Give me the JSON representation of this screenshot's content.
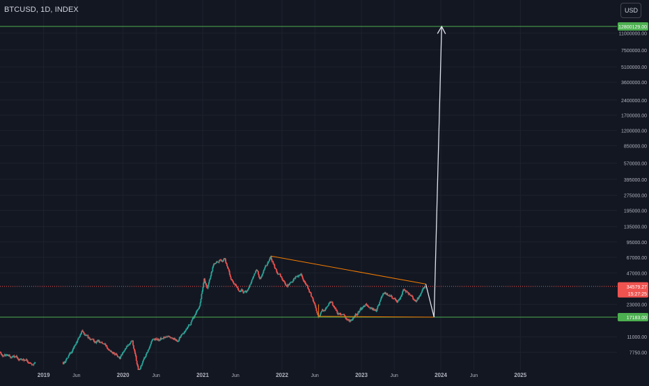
{
  "header": {
    "symbol": "BTCUSD, 1D, INDEX",
    "currency_button": "USD"
  },
  "colors": {
    "background": "#131722",
    "grid": "#1e222d",
    "axis_text": "#b2b5be",
    "candle_up": "#26a69a",
    "candle_down": "#ef5350",
    "horizontal_line": "#4caf50",
    "trend_line": "#f57c00",
    "arrow": "#e0e3eb",
    "price_line": "#ef5350"
  },
  "chart_data": {
    "type": "candlestick",
    "title": "BTCUSD, 1D, INDEX",
    "y_scale": "log",
    "ylim": [
      5700,
      15500000
    ],
    "y_ticks": [
      {
        "value": 11000000,
        "label": "11000000.00"
      },
      {
        "value": 7500000,
        "label": "7500000.00"
      },
      {
        "value": 5100000,
        "label": "5100000.00"
      },
      {
        "value": 3600000,
        "label": "3600000.00"
      },
      {
        "value": 2400000,
        "label": "2400000.00"
      },
      {
        "value": 1700000,
        "label": "1700000.00"
      },
      {
        "value": 1200000,
        "label": "1200000.00"
      },
      {
        "value": 850000,
        "label": "850000.00"
      },
      {
        "value": 570000,
        "label": "570000.00"
      },
      {
        "value": 395000,
        "label": "395000.00"
      },
      {
        "value": 275000,
        "label": "275000.00"
      },
      {
        "value": 195000,
        "label": "195000.00"
      },
      {
        "value": 135000,
        "label": "135000.00"
      },
      {
        "value": 95000,
        "label": "95000.00"
      },
      {
        "value": 67000,
        "label": "67000.00"
      },
      {
        "value": 47000,
        "label": "47000.00"
      },
      {
        "value": 23000,
        "label": "23000.00"
      },
      {
        "value": 11000,
        "label": "11000.00"
      },
      {
        "value": 7750,
        "label": "7750.00"
      }
    ],
    "x_ticks": [
      {
        "date": "2019-01-01",
        "label": "2019",
        "bold": true
      },
      {
        "date": "2019-06-01",
        "label": "Jun",
        "bold": false
      },
      {
        "date": "2020-01-01",
        "label": "2020",
        "bold": true
      },
      {
        "date": "2020-06-01",
        "label": "Jun",
        "bold": false
      },
      {
        "date": "2021-01-01",
        "label": "2021",
        "bold": true
      },
      {
        "date": "2021-06-01",
        "label": "Jun",
        "bold": false
      },
      {
        "date": "2022-01-01",
        "label": "2022",
        "bold": true
      },
      {
        "date": "2022-06-01",
        "label": "Jun",
        "bold": false
      },
      {
        "date": "2023-01-01",
        "label": "2023",
        "bold": true
      },
      {
        "date": "2023-06-01",
        "label": "Jun",
        "bold": false
      },
      {
        "date": "2024-01-01",
        "label": "2024",
        "bold": true
      },
      {
        "date": "2024-06-01",
        "label": "Jun",
        "bold": false
      },
      {
        "date": "2025-01-01",
        "label": "2025",
        "bold": true
      }
    ],
    "price_path": [
      [
        "2018-04-15",
        8400
      ],
      [
        "2018-06-01",
        7500
      ],
      [
        "2018-09-01",
        6800
      ],
      [
        "2018-11-20",
        5900
      ],
      [
        "2019-04-02",
        5900
      ],
      [
        "2019-05-15",
        8000
      ],
      [
        "2019-06-26",
        12500
      ],
      [
        "2019-08-01",
        10200
      ],
      [
        "2019-09-20",
        9800
      ],
      [
        "2019-11-20",
        7800
      ],
      [
        "2019-12-18",
        6900
      ],
      [
        "2020-02-12",
        10300
      ],
      [
        "2020-03-13",
        4900
      ],
      [
        "2020-05-08",
        9800
      ],
      [
        "2020-07-27",
        11000
      ],
      [
        "2020-09-05",
        10200
      ],
      [
        "2020-10-25",
        13100
      ],
      [
        "2020-12-16",
        21300
      ],
      [
        "2021-01-08",
        41000
      ],
      [
        "2021-01-22",
        31000
      ],
      [
        "2021-02-21",
        57000
      ],
      [
        "2021-03-14",
        61000
      ],
      [
        "2021-04-14",
        64500
      ],
      [
        "2021-05-19",
        37000
      ],
      [
        "2021-06-22",
        31000
      ],
      [
        "2021-07-20",
        29800
      ],
      [
        "2021-09-07",
        52000
      ],
      [
        "2021-09-21",
        40800
      ],
      [
        "2021-11-10",
        68000
      ],
      [
        "2021-12-06",
        49000
      ],
      [
        "2022-01-24",
        35000
      ],
      [
        "2022-03-28",
        47500
      ],
      [
        "2022-05-12",
        28700
      ],
      [
        "2022-06-18",
        17800
      ],
      [
        "2022-08-14",
        24400
      ],
      [
        "2022-09-13",
        19000
      ],
      [
        "2022-11-09",
        15600
      ],
      [
        "2023-01-20",
        22700
      ],
      [
        "2023-03-10",
        19800
      ],
      [
        "2023-04-14",
        30500
      ],
      [
        "2023-06-15",
        25000
      ],
      [
        "2023-07-13",
        31500
      ],
      [
        "2023-09-11",
        25000
      ],
      [
        "2023-10-24",
        34579
      ]
    ],
    "price_high": 31500,
    "current_price": {
      "value": 34579.27,
      "label": "34579.27",
      "countdown": "15:27:25"
    },
    "horizontal_levels": [
      {
        "value": 12800129,
        "label": "12800129.00"
      },
      {
        "value": 17183,
        "label": "17183.00"
      }
    ],
    "trend_lines": [
      {
        "points": [
          [
            "2021-11-10",
            69000
          ],
          [
            "2023-10-24",
            36500
          ]
        ]
      },
      {
        "points": [
          [
            "2022-06-18",
            17500
          ],
          [
            "2023-12-01",
            17183
          ]
        ]
      },
      {
        "points": [
          [
            "2022-06-18",
            17500
          ],
          [
            "2022-06-18",
            23000
          ]
        ]
      }
    ],
    "projection_path": [
      [
        "2023-10-24",
        36500
      ],
      [
        "2023-12-01",
        17183
      ],
      [
        "2024-01-05",
        12800129
      ]
    ]
  }
}
